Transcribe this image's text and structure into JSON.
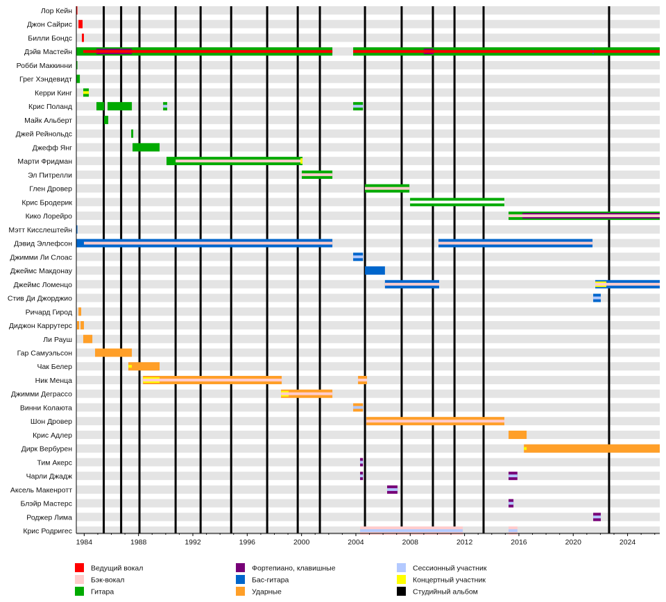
{
  "chart_data": {
    "type": "timeline",
    "title": "",
    "xlim": [
      1983.42,
      2026.37
    ],
    "x_ticks": [
      "1984",
      "1988",
      "1992",
      "1996",
      "2000",
      "2004",
      "2008",
      "2012",
      "2016",
      "2020",
      "2024"
    ],
    "grid": false,
    "legend_position": "bottom",
    "colors": {
      "lead_vocals": "#ff0000",
      "backing_vocals": "#ffcccc",
      "guitar": "#00aa00",
      "keyboards": "#770077",
      "bass": "#0066cc",
      "drums": "#ff9f28",
      "session": "#b3c9ff",
      "touring": "#ffff00",
      "album": "#000000"
    },
    "legend": [
      {
        "role": "lead_vocals",
        "label": "Ведущий вокал"
      },
      {
        "role": "backing_vocals",
        "label": "Бэк-вокал"
      },
      {
        "role": "guitar",
        "label": "Гитара"
      },
      {
        "role": "keyboards",
        "label": "Фортепиано, клавишные"
      },
      {
        "role": "bass",
        "label": "Бас-гитара"
      },
      {
        "role": "drums",
        "label": "Ударные"
      },
      {
        "role": "session",
        "label": "Сессионный участник"
      },
      {
        "role": "touring",
        "label": "Концертный участник"
      },
      {
        "role": "album",
        "label": "Студийный альбом"
      }
    ],
    "albums": [
      1985.44,
      1986.72,
      1988.07,
      1990.73,
      1992.57,
      1994.82,
      1997.47,
      1999.72,
      2001.35,
      2004.67,
      2007.37,
      2009.67,
      2011.26,
      2013.4,
      2022.64
    ],
    "members": [
      {
        "name": "Лор Кейн",
        "segments": [
          {
            "from": 1983.42,
            "to": 1983.47,
            "role": "lead_vocals",
            "band": "full"
          }
        ]
      },
      {
        "name": "Джон Сайрис",
        "segments": [
          {
            "from": 1983.58,
            "to": 1983.88,
            "role": "lead_vocals",
            "band": "full"
          }
        ]
      },
      {
        "name": "Билли Бондс",
        "segments": [
          {
            "from": 1983.83,
            "to": 1983.98,
            "role": "lead_vocals",
            "band": "full"
          }
        ]
      },
      {
        "name": "Дэйв Мастейн",
        "segments": [
          {
            "from": 1983.42,
            "to": 2002.27,
            "role": "guitar",
            "band": "full"
          },
          {
            "from": 1984.9,
            "to": 1987.51,
            "role": "keyboards",
            "band": "inner"
          },
          {
            "from": 1983.93,
            "to": 2002.27,
            "role": "lead_vocals",
            "band": "mid"
          },
          {
            "from": 2003.8,
            "to": 2026.37,
            "role": "guitar",
            "band": "full"
          },
          {
            "from": 2003.8,
            "to": 2026.37,
            "role": "lead_vocals",
            "band": "mid"
          },
          {
            "from": 2009.0,
            "to": 2009.73,
            "role": "keyboards",
            "band": "inner"
          },
          {
            "from": 2009.0,
            "to": 2009.73,
            "role": "lead_vocals",
            "band": "mid"
          },
          {
            "from": 2021.42,
            "to": 2021.5,
            "role": "bass",
            "band": "inner"
          },
          {
            "from": 2021.42,
            "to": 2021.5,
            "role": "lead_vocals",
            "band": "mid"
          }
        ]
      },
      {
        "name": "Робби Маккинни",
        "segments": [
          {
            "from": 1983.42,
            "to": 1983.47,
            "role": "guitar",
            "band": "full"
          }
        ]
      },
      {
        "name": "Грег Хэндевидт",
        "segments": [
          {
            "from": 1983.42,
            "to": 1983.68,
            "role": "guitar",
            "band": "full"
          }
        ]
      },
      {
        "name": "Керри Кинг",
        "segments": [
          {
            "from": 1983.93,
            "to": 1984.34,
            "role": "guitar",
            "band": "full"
          },
          {
            "from": 1983.93,
            "to": 1984.34,
            "role": "touring",
            "band": "mid"
          }
        ]
      },
      {
        "name": "Крис Поланд",
        "segments": [
          {
            "from": 1984.9,
            "to": 1985.47,
            "role": "guitar",
            "band": "full"
          },
          {
            "from": 1985.72,
            "to": 1987.51,
            "role": "guitar",
            "band": "full"
          },
          {
            "from": 1989.81,
            "to": 1990.11,
            "role": "guitar",
            "band": "full"
          },
          {
            "from": 1989.81,
            "to": 1990.11,
            "role": "session",
            "band": "mid"
          },
          {
            "from": 2003.8,
            "to": 2004.52,
            "role": "guitar",
            "band": "full"
          },
          {
            "from": 2003.8,
            "to": 2004.52,
            "role": "session",
            "band": "mid"
          }
        ]
      },
      {
        "name": "Майк Альберт",
        "segments": [
          {
            "from": 1985.47,
            "to": 1985.77,
            "role": "guitar",
            "band": "full"
          }
        ]
      },
      {
        "name": "Джей Рейнольдс",
        "segments": [
          {
            "from": 1987.46,
            "to": 1987.61,
            "role": "guitar",
            "band": "full"
          }
        ]
      },
      {
        "name": "Джефф Янг",
        "segments": [
          {
            "from": 1987.56,
            "to": 1989.55,
            "role": "guitar",
            "band": "full"
          }
        ]
      },
      {
        "name": "Марти Фридман",
        "segments": [
          {
            "from": 1990.06,
            "to": 2000.07,
            "role": "guitar",
            "band": "full"
          },
          {
            "from": 1990.73,
            "to": 2000.07,
            "role": "backing_vocals",
            "band": "mid"
          },
          {
            "from": 1999.92,
            "to": 2000.07,
            "role": "touring",
            "band": "inner"
          }
        ]
      },
      {
        "name": "Эл Питрелли",
        "segments": [
          {
            "from": 2000.02,
            "to": 2002.27,
            "role": "guitar",
            "band": "full"
          },
          {
            "from": 2000.02,
            "to": 2002.27,
            "role": "backing_vocals",
            "band": "mid"
          }
        ]
      },
      {
        "name": "Глен Дровер",
        "segments": [
          {
            "from": 2004.67,
            "to": 2007.94,
            "role": "guitar",
            "band": "full"
          },
          {
            "from": 2004.67,
            "to": 2007.94,
            "role": "backing_vocals",
            "band": "mid"
          }
        ]
      },
      {
        "name": "Крис Бродерик",
        "segments": [
          {
            "from": 2007.99,
            "to": 2014.93,
            "role": "guitar",
            "band": "full"
          },
          {
            "from": 2007.99,
            "to": 2014.93,
            "role": "white",
            "band": "mid"
          }
        ]
      },
      {
        "name": "Кико Лорейро",
        "segments": [
          {
            "from": 2015.24,
            "to": 2026.37,
            "role": "guitar",
            "band": "full"
          },
          {
            "from": 2016.26,
            "to": 2026.37,
            "role": "keyboards",
            "band": "inner"
          },
          {
            "from": 2015.24,
            "to": 2026.37,
            "role": "backing_vocals",
            "band": "mid"
          }
        ]
      },
      {
        "name": "Мэтт Кисслештейн",
        "segments": [
          {
            "from": 1983.42,
            "to": 1983.47,
            "role": "bass",
            "band": "full"
          }
        ]
      },
      {
        "name": "Дэвид Эллефсон",
        "segments": [
          {
            "from": 1983.42,
            "to": 2002.27,
            "role": "bass",
            "band": "full"
          },
          {
            "from": 1983.98,
            "to": 2002.27,
            "role": "backing_vocals",
            "band": "mid"
          },
          {
            "from": 2010.08,
            "to": 2021.42,
            "role": "bass",
            "band": "full"
          },
          {
            "from": 2010.08,
            "to": 2021.42,
            "role": "backing_vocals",
            "band": "mid"
          }
        ]
      },
      {
        "name": "Джимми Ли Слоас",
        "segments": [
          {
            "from": 2003.8,
            "to": 2004.52,
            "role": "bass",
            "band": "full"
          },
          {
            "from": 2003.8,
            "to": 2004.52,
            "role": "session",
            "band": "mid"
          }
        ]
      },
      {
        "name": "Джеймс Макдонау",
        "segments": [
          {
            "from": 2004.67,
            "to": 2006.14,
            "role": "bass",
            "band": "full"
          }
        ]
      },
      {
        "name": "Джеймс Ломенцо",
        "segments": [
          {
            "from": 2006.14,
            "to": 2010.13,
            "role": "bass",
            "band": "full"
          },
          {
            "from": 2006.14,
            "to": 2010.13,
            "role": "backing_vocals",
            "band": "mid"
          },
          {
            "from": 2021.62,
            "to": 2026.37,
            "role": "bass",
            "band": "full"
          },
          {
            "from": 2021.62,
            "to": 2022.44,
            "role": "touring",
            "band": "inner"
          },
          {
            "from": 2021.62,
            "to": 2026.37,
            "role": "backing_vocals",
            "band": "mid"
          }
        ]
      },
      {
        "name": "Стив Ди Джорджио",
        "segments": [
          {
            "from": 2021.47,
            "to": 2022.03,
            "role": "bass",
            "band": "full"
          },
          {
            "from": 2021.47,
            "to": 2022.03,
            "role": "session",
            "band": "mid"
          }
        ]
      },
      {
        "name": "Ричард Гирод",
        "segments": [
          {
            "from": 1983.58,
            "to": 1983.78,
            "role": "drums",
            "band": "full"
          }
        ]
      },
      {
        "name": "Диджон Каррутерс",
        "segments": [
          {
            "from": 1983.47,
            "to": 1983.63,
            "role": "drums",
            "band": "full"
          },
          {
            "from": 1983.73,
            "to": 1983.98,
            "role": "drums",
            "band": "full"
          }
        ]
      },
      {
        "name": "Ли Рауш",
        "segments": [
          {
            "from": 1983.93,
            "to": 1984.6,
            "role": "drums",
            "band": "full"
          }
        ]
      },
      {
        "name": "Гар Самуэльсон",
        "segments": [
          {
            "from": 1984.8,
            "to": 1987.51,
            "role": "drums",
            "band": "full"
          }
        ]
      },
      {
        "name": "Чак Белер",
        "segments": [
          {
            "from": 1987.25,
            "to": 1989.55,
            "role": "drums",
            "band": "full"
          },
          {
            "from": 1987.25,
            "to": 1987.51,
            "role": "touring",
            "band": "mid"
          }
        ]
      },
      {
        "name": "Ник Менца",
        "segments": [
          {
            "from": 1988.33,
            "to": 1998.54,
            "role": "drums",
            "band": "full"
          },
          {
            "from": 1988.33,
            "to": 1989.55,
            "role": "touring",
            "band": "inner"
          },
          {
            "from": 1988.33,
            "to": 1998.54,
            "role": "backing_vocals",
            "band": "mid"
          },
          {
            "from": 2004.16,
            "to": 2004.82,
            "role": "drums",
            "band": "full"
          },
          {
            "from": 2004.16,
            "to": 2004.82,
            "role": "backing_vocals",
            "band": "mid"
          }
        ]
      },
      {
        "name": "Джимми Деграссо",
        "segments": [
          {
            "from": 1998.49,
            "to": 2002.27,
            "role": "drums",
            "band": "full"
          },
          {
            "from": 1998.49,
            "to": 1999.05,
            "role": "touring",
            "band": "inner"
          },
          {
            "from": 1998.49,
            "to": 2002.27,
            "role": "backing_vocals",
            "band": "mid"
          }
        ]
      },
      {
        "name": "Винни Колаюта",
        "segments": [
          {
            "from": 2003.8,
            "to": 2004.52,
            "role": "drums",
            "band": "full"
          },
          {
            "from": 2003.8,
            "to": 2004.52,
            "role": "session",
            "band": "mid"
          }
        ]
      },
      {
        "name": "Шон Дровер",
        "segments": [
          {
            "from": 2004.77,
            "to": 2014.93,
            "role": "drums",
            "band": "full"
          },
          {
            "from": 2004.77,
            "to": 2014.93,
            "role": "backing_vocals",
            "band": "mid"
          }
        ]
      },
      {
        "name": "Крис Адлер",
        "segments": [
          {
            "from": 2015.24,
            "to": 2016.57,
            "role": "drums",
            "band": "full"
          }
        ]
      },
      {
        "name": "Дирк Вербурен",
        "segments": [
          {
            "from": 2016.37,
            "to": 2026.37,
            "role": "drums",
            "band": "full"
          },
          {
            "from": 2016.37,
            "to": 2016.57,
            "role": "touring",
            "band": "mid"
          }
        ]
      },
      {
        "name": "Тим Акерс",
        "segments": [
          {
            "from": 2004.31,
            "to": 2004.52,
            "role": "keyboards",
            "band": "full"
          },
          {
            "from": 2004.31,
            "to": 2004.52,
            "role": "session",
            "band": "mid"
          }
        ]
      },
      {
        "name": "Чарли Джадж",
        "segments": [
          {
            "from": 2004.31,
            "to": 2004.52,
            "role": "keyboards",
            "band": "full"
          },
          {
            "from": 2004.31,
            "to": 2004.52,
            "role": "session",
            "band": "mid"
          },
          {
            "from": 2015.24,
            "to": 2015.89,
            "role": "keyboards",
            "band": "full"
          },
          {
            "from": 2015.24,
            "to": 2015.89,
            "role": "session",
            "band": "mid"
          }
        ]
      },
      {
        "name": "Аксель Макенротт",
        "segments": [
          {
            "from": 2006.3,
            "to": 2007.06,
            "role": "keyboards",
            "band": "full"
          },
          {
            "from": 2006.3,
            "to": 2007.06,
            "role": "session",
            "band": "mid"
          }
        ]
      },
      {
        "name": "Блэйр Мастерс",
        "segments": [
          {
            "from": 2015.24,
            "to": 2015.6,
            "role": "keyboards",
            "band": "full"
          },
          {
            "from": 2015.24,
            "to": 2015.6,
            "role": "session",
            "band": "mid"
          }
        ]
      },
      {
        "name": "Роджер Лима",
        "segments": [
          {
            "from": 2021.47,
            "to": 2022.03,
            "role": "keyboards",
            "band": "full"
          },
          {
            "from": 2021.47,
            "to": 2022.03,
            "role": "session",
            "band": "mid"
          }
        ]
      },
      {
        "name": "Крис Родригес",
        "segments": [
          {
            "from": 2004.31,
            "to": 2011.87,
            "role": "backing_vocals",
            "band": "full"
          },
          {
            "from": 2004.31,
            "to": 2011.87,
            "role": "session",
            "band": "mid"
          },
          {
            "from": 2015.24,
            "to": 2015.89,
            "role": "backing_vocals",
            "band": "full"
          },
          {
            "from": 2015.24,
            "to": 2015.89,
            "role": "session",
            "band": "mid"
          }
        ]
      }
    ]
  }
}
